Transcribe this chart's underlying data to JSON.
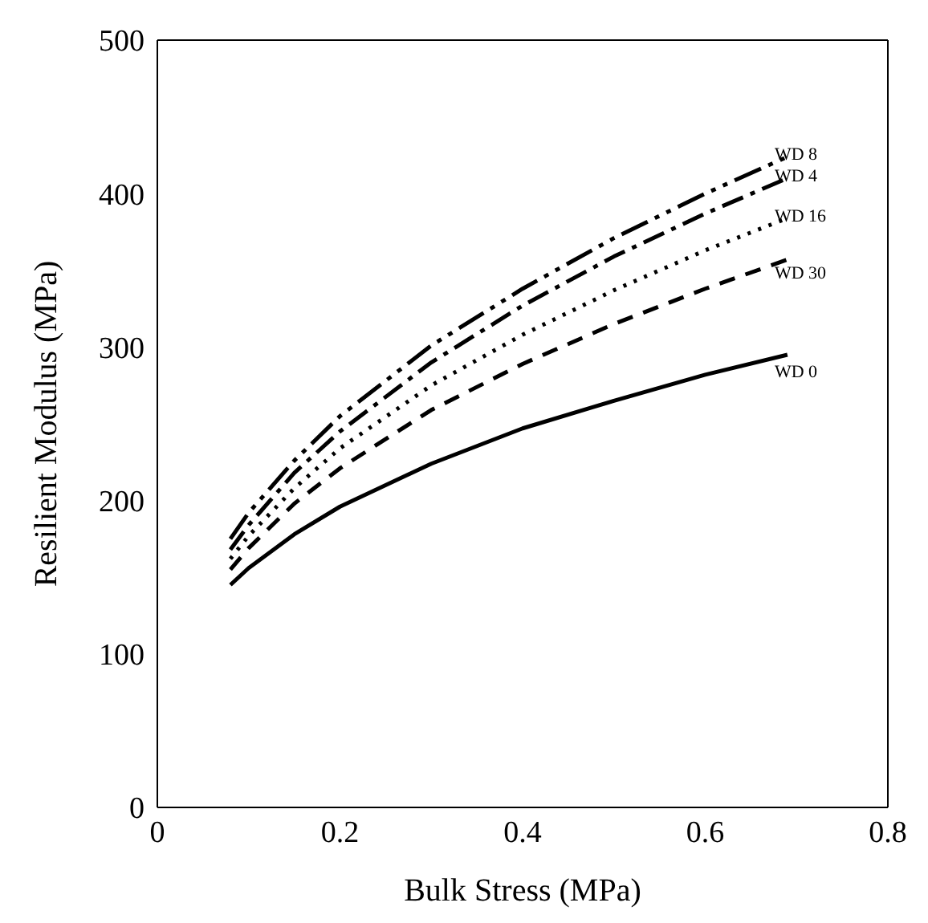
{
  "chart_data": {
    "type": "line",
    "xlabel": "Bulk Stress (MPa)",
    "ylabel": "Resilient Modulus (MPa)",
    "x": [
      0.08,
      0.1,
      0.15,
      0.2,
      0.3,
      0.4,
      0.5,
      0.6,
      0.69
    ],
    "xlim": [
      0,
      0.8
    ],
    "xticks": [
      0,
      0.2,
      0.4,
      0.6,
      0.8
    ],
    "ylim": [
      0,
      500
    ],
    "yticks": [
      0,
      100,
      200,
      300,
      400,
      500
    ],
    "marker": "none",
    "series": [
      {
        "name": "WD 0",
        "color": "#000000",
        "line_style": "solid",
        "values": [
          145,
          156,
          178,
          196,
          224,
          247,
          265,
          282,
          295
        ]
      },
      {
        "name": "WD 4",
        "color": "#000000",
        "line_style": "dashed",
        "values": [
          168,
          184,
          218,
          245,
          290,
          327,
          359,
          387,
          410
        ]
      },
      {
        "name": "WD 8",
        "color": "#000000",
        "line_style": "dashed",
        "values": [
          175,
          192,
          226,
          255,
          301,
          338,
          371,
          400,
          424
        ]
      },
      {
        "name": "WD 16",
        "color": "#000000",
        "line_style": "dotted",
        "values": [
          162,
          177,
          208,
          234,
          275,
          308,
          337,
          363,
          384
        ]
      },
      {
        "name": "WD 30",
        "color": "#000000",
        "line_style": "dashed",
        "values": [
          155,
          169,
          198,
          221,
          259,
          289,
          315,
          338,
          357
        ]
      }
    ]
  }
}
